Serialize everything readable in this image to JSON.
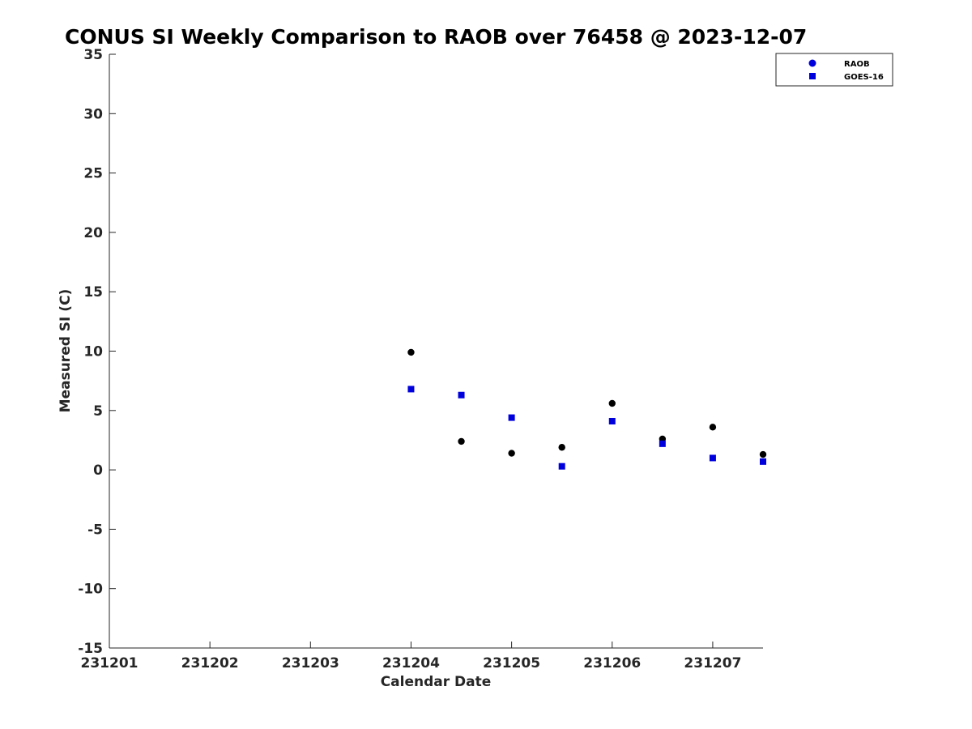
{
  "chart_data": {
    "type": "scatter",
    "title": "CONUS SI Weekly Comparison to RAOB over 76458 @ 2023-12-07",
    "xlabel": "Calendar Date",
    "ylabel": "Measured SI (C)",
    "xlim": [
      231201,
      231207.5
    ],
    "ylim": [
      -15,
      35
    ],
    "x_ticks": [
      231201,
      231202,
      231203,
      231204,
      231205,
      231206,
      231207
    ],
    "x_tick_labels": [
      "231201",
      "231202",
      "231203",
      "231204",
      "231205",
      "231206",
      "231207"
    ],
    "y_ticks": [
      -15,
      -10,
      -5,
      0,
      5,
      10,
      15,
      20,
      25,
      30,
      35
    ],
    "y_tick_labels": [
      "-15",
      "-10",
      "-5",
      "0",
      "5",
      "10",
      "15",
      "20",
      "25",
      "30",
      "35"
    ],
    "grid": false,
    "legend_position": "top-right",
    "series": [
      {
        "name": "RAOB",
        "marker": "circle",
        "color": "#000000",
        "legend_color": "#0000dd",
        "x": [
          231204,
          231204.5,
          231205,
          231205.5,
          231206,
          231206.5,
          231207,
          231207.5
        ],
        "y": [
          9.9,
          2.4,
          1.4,
          1.9,
          5.6,
          2.6,
          3.6,
          1.3
        ]
      },
      {
        "name": "GOES-16",
        "marker": "square",
        "color": "#0000dd",
        "legend_color": "#0000dd",
        "x": [
          231204,
          231204.5,
          231205,
          231205.5,
          231206,
          231206.5,
          231207,
          231207.5
        ],
        "y": [
          6.8,
          6.3,
          4.4,
          0.3,
          4.1,
          2.2,
          1.0,
          0.7
        ]
      }
    ]
  }
}
